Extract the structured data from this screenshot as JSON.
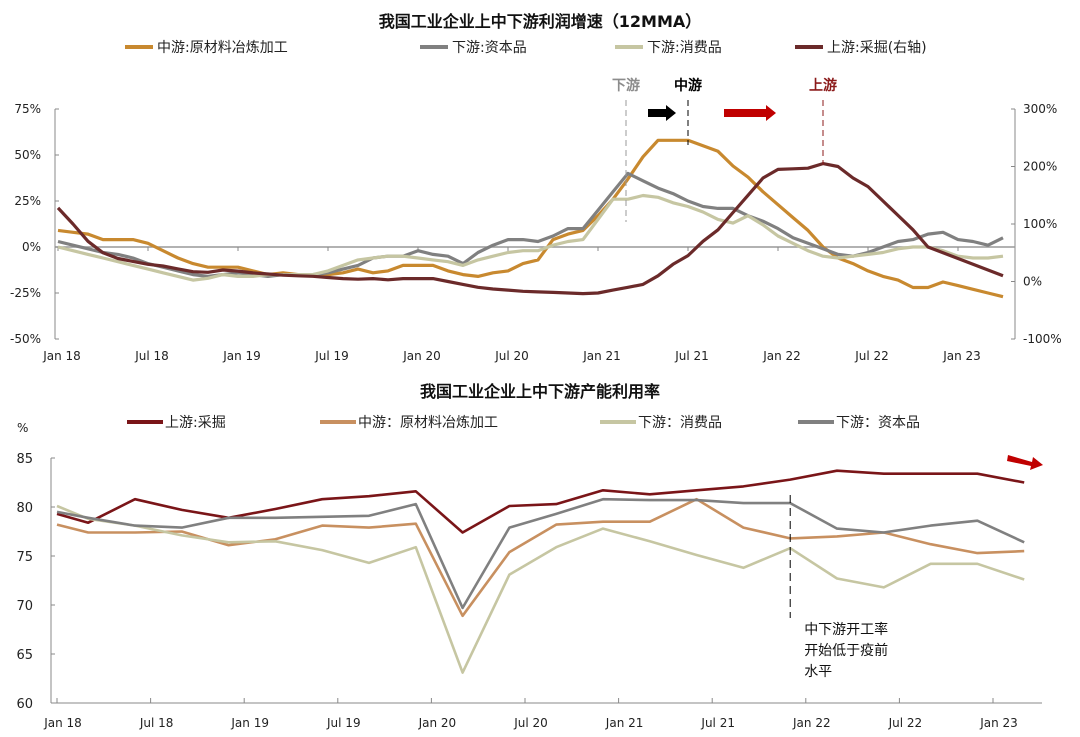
{
  "chart_data": [
    {
      "type": "line",
      "title": "我国工业企业上中下游利润增速（12MMA）",
      "x_start": "2018-01",
      "x_frequency": "monthly",
      "x_ticks": [
        "Jan 18",
        "Jul 18",
        "Jan 19",
        "Jul 19",
        "Jan 20",
        "Jul 20",
        "Jan 21",
        "Jul 21",
        "Jan 22",
        "Jul 22",
        "Jan 23"
      ],
      "y_left": {
        "range": [
          -50,
          75
        ],
        "ticks": [
          "-50%",
          "-25%",
          "0%",
          "25%",
          "50%",
          "75%"
        ]
      },
      "y_right": {
        "range": [
          -100,
          300
        ],
        "ticks": [
          "-100%",
          "0%",
          "100%",
          "200%",
          "300%"
        ]
      },
      "legend_position": "top",
      "grid": false,
      "series": [
        {
          "name": "中游:原材料冶炼加工",
          "axis": "left",
          "color": "#C8892F",
          "values": [
            9,
            8,
            7,
            4,
            4,
            4,
            2,
            -2,
            -6,
            -9,
            -11,
            -11,
            -11,
            -13,
            -15,
            -14,
            -15,
            -15,
            -15,
            -14,
            -12,
            -14,
            -13,
            -10,
            -10,
            -10,
            -13,
            -15,
            -16,
            -14,
            -13,
            -9,
            -7,
            4,
            7,
            9,
            17,
            26,
            37,
            49,
            58,
            58,
            58,
            55,
            52,
            44,
            38,
            30,
            23,
            16,
            9,
            0,
            -6,
            -9,
            -13,
            -16,
            -18,
            -22,
            -22,
            -19,
            -21,
            -23,
            -25,
            -27
          ]
        },
        {
          "name": "下游:资本品",
          "axis": "left",
          "color": "#808080",
          "values": [
            3,
            1,
            -1,
            -3,
            -4,
            -6,
            -9,
            -11,
            -13,
            -15,
            -16,
            -15,
            -14,
            -15,
            -16,
            -15,
            -15,
            -15,
            -14,
            -12,
            -10,
            -6,
            -5,
            -5,
            -2,
            -4,
            -5,
            -9,
            -3,
            1,
            4,
            4,
            3,
            6,
            10,
            10,
            20,
            30,
            40,
            36,
            32,
            29,
            25,
            22,
            21,
            21,
            17,
            14,
            10,
            5,
            2,
            -1,
            -4,
            -5,
            -3,
            0,
            3,
            4,
            7,
            8,
            4,
            3,
            1,
            5
          ]
        },
        {
          "name": "下游:消费品",
          "axis": "left",
          "color": "#C6C6A2",
          "values": [
            0,
            -2,
            -4,
            -6,
            -8,
            -10,
            -12,
            -14,
            -16,
            -18,
            -17,
            -15,
            -16,
            -16,
            -15,
            -15,
            -15,
            -15,
            -13,
            -10,
            -7,
            -6,
            -5,
            -5,
            -6,
            -7,
            -8,
            -10,
            -7,
            -5,
            -3,
            -2,
            -2,
            1,
            3,
            4,
            15,
            26,
            26,
            28,
            27,
            24,
            22,
            19,
            15,
            13,
            17,
            12,
            6,
            2,
            -2,
            -5,
            -6,
            -5,
            -4,
            -3,
            -1,
            0,
            0,
            -2,
            -5,
            -6,
            -6,
            -5
          ]
        },
        {
          "name": "上游:采掘(右轴)",
          "axis": "right",
          "color": "#6B2A2A",
          "values": [
            128,
            100,
            70,
            50,
            40,
            35,
            30,
            27,
            22,
            17,
            16,
            20,
            18,
            15,
            13,
            11,
            10,
            9,
            7,
            5,
            4,
            5,
            3,
            5,
            5,
            5,
            0,
            -5,
            -10,
            -13,
            -15,
            -17,
            -18,
            -19,
            -20,
            -21,
            -20,
            -15,
            -10,
            -5,
            10,
            30,
            45,
            70,
            90,
            120,
            150,
            180,
            195,
            196,
            197,
            205,
            200,
            180,
            165,
            140,
            115,
            90,
            60,
            50,
            40,
            30,
            20,
            10
          ]
        }
      ],
      "annotations": [
        {
          "text": "下游",
          "color": "#8C8C8C",
          "date": "2021-03"
        },
        {
          "text": "中游",
          "color": "#000000",
          "date": "2021-07"
        },
        {
          "text": "上游",
          "color": "#8B1A1A",
          "date": "2022-04"
        }
      ],
      "arrows": [
        {
          "color": "#000000",
          "direction": "right"
        },
        {
          "color": "#C00000",
          "direction": "right"
        }
      ]
    },
    {
      "type": "line",
      "title": "我国工业企业上中下游产能利用率",
      "unit": "%",
      "x": [
        "2018-01",
        "2018-03",
        "2018-06",
        "2018-09",
        "2018-12",
        "2019-03",
        "2019-06",
        "2019-09",
        "2019-12",
        "2020-03",
        "2020-06",
        "2020-09",
        "2020-12",
        "2021-03",
        "2021-06",
        "2021-09",
        "2021-12",
        "2022-03",
        "2022-06",
        "2022-09",
        "2022-12",
        "2023-03"
      ],
      "x_ticks": [
        "Jan 18",
        "Jul 18",
        "Jan 19",
        "Jul 19",
        "Jan 20",
        "Jul 20",
        "Jan 21",
        "Jul 21",
        "Jan 22",
        "Jul 22",
        "Jan 23"
      ],
      "y_range": [
        60,
        85
      ],
      "y_ticks": [
        "60",
        "65",
        "70",
        "75",
        "80",
        "85"
      ],
      "legend_position": "top",
      "grid": false,
      "series": [
        {
          "name": "上游:采掘",
          "color": "#7A1518",
          "values": [
            79.3,
            78.4,
            80.8,
            79.7,
            78.9,
            79.8,
            80.8,
            81.1,
            81.6,
            77.4,
            80.1,
            80.3,
            81.7,
            81.3,
            81.7,
            82.1,
            82.8,
            83.7,
            83.4,
            83.4,
            83.4,
            82.5
          ]
        },
        {
          "name": "中游：原材料冶炼加工",
          "color": "#C89060",
          "values": [
            78.2,
            77.4,
            77.4,
            77.5,
            76.1,
            76.7,
            78.1,
            77.9,
            78.3,
            68.9,
            75.4,
            78.2,
            78.5,
            78.5,
            80.8,
            77.9,
            76.8,
            77.0,
            77.4,
            76.2,
            75.3,
            75.5
          ]
        },
        {
          "name": "下游：消费品",
          "color": "#C6C6A2",
          "values": [
            80.1,
            78.8,
            78.1,
            77.1,
            76.4,
            76.5,
            75.6,
            74.3,
            75.9,
            63.1,
            73.1,
            75.9,
            77.8,
            76.5,
            75.1,
            73.8,
            75.8,
            72.7,
            71.8,
            74.2,
            74.2,
            72.6
          ]
        },
        {
          "name": "下游：资本品",
          "color": "#808080",
          "values": [
            79.5,
            78.9,
            78.1,
            77.9,
            78.9,
            78.9,
            79.0,
            79.1,
            80.3,
            69.7,
            77.9,
            79.3,
            80.8,
            80.7,
            80.7,
            80.4,
            80.4,
            77.8,
            77.4,
            78.1,
            78.6,
            76.4
          ]
        }
      ],
      "annotation": {
        "lines": [
          "中下游开工率",
          "开始低于疫前",
          "水平"
        ],
        "date": "2021-12"
      },
      "arrow": {
        "color": "#C00000",
        "direction": "down-right"
      }
    }
  ]
}
